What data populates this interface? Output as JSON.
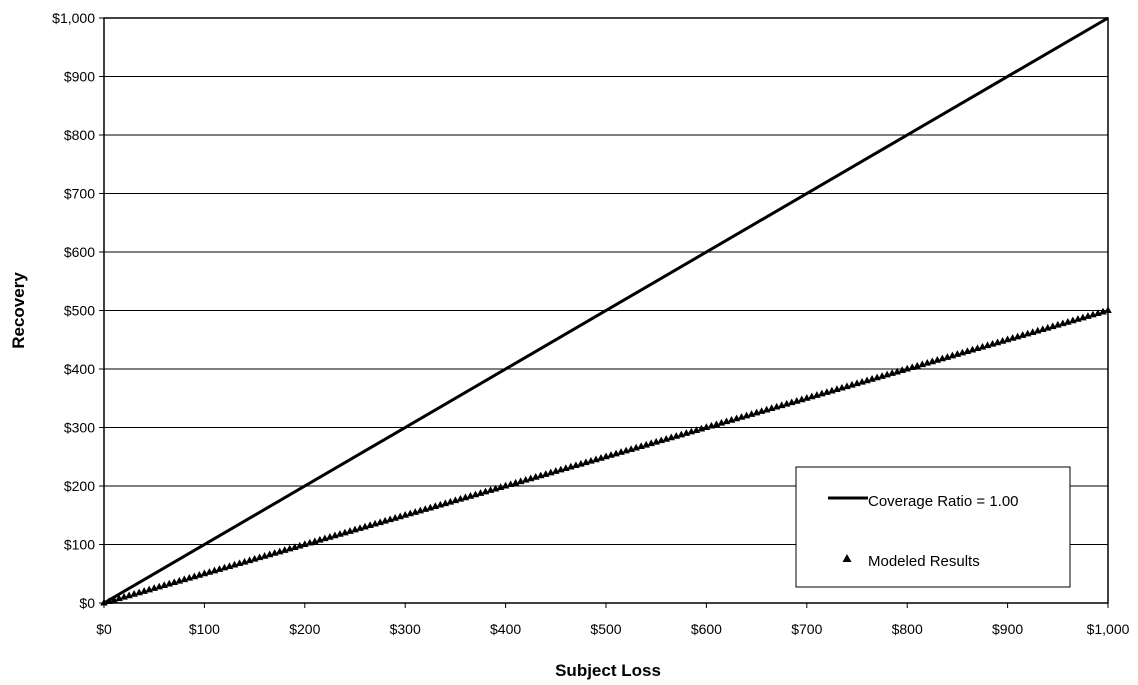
{
  "chart_data": {
    "type": "line",
    "xlabel": "Subject Loss",
    "ylabel": "Recovery",
    "xlim": [
      0,
      1000
    ],
    "ylim": [
      0,
      1000
    ],
    "x_ticks": [
      0,
      100,
      200,
      300,
      400,
      500,
      600,
      700,
      800,
      900,
      1000
    ],
    "y_ticks": [
      0,
      100,
      200,
      300,
      400,
      500,
      600,
      700,
      800,
      900,
      1000
    ],
    "x_tick_labels": [
      "$0",
      "$100",
      "$200",
      "$300",
      "$400",
      "$500",
      "$600",
      "$700",
      "$800",
      "$900",
      "$1,000"
    ],
    "y_tick_labels": [
      "$0",
      "$100",
      "$200",
      "$300",
      "$400",
      "$500",
      "$600",
      "$700",
      "$800",
      "$900",
      "$1,000"
    ],
    "grid": "horizontal",
    "legend_position": "bottom-right",
    "series": [
      {
        "name": "Coverage Ratio = 1.00",
        "style": "line",
        "color": "#000000",
        "x": [
          0,
          1000
        ],
        "y": [
          0,
          1000
        ]
      },
      {
        "name": "Modeled Results",
        "style": "marker-triangle",
        "color": "#000000",
        "x_start": 0,
        "x_end": 1000,
        "x_step": 5,
        "slope": 0.5,
        "endpoints": [
          [
            0,
            0
          ],
          [
            1000,
            500
          ]
        ]
      }
    ]
  }
}
